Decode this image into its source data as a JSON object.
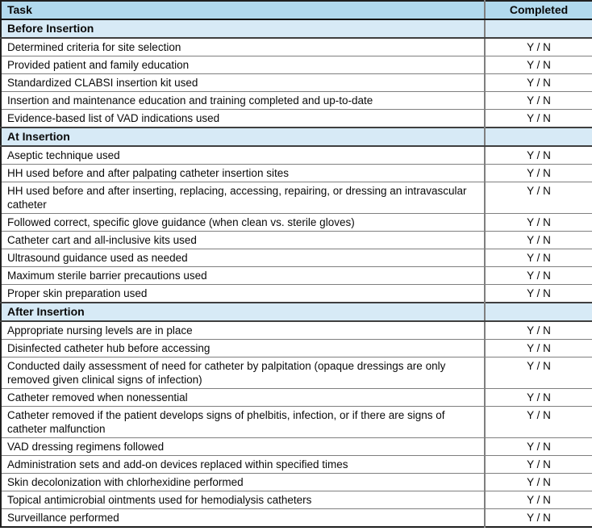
{
  "colors": {
    "header_bg": "#b1d9ed",
    "section_bg": "#d7eaf6",
    "outer_border": "#1f1f1f",
    "row_divider": "#7f7f7f",
    "text": "#0a0a0a"
  },
  "table": {
    "header": {
      "task": "Task",
      "completed": "Completed"
    },
    "sections": [
      {
        "title": "Before Insertion",
        "rows": [
          {
            "task": "Determined criteria for site selection",
            "completed": "Y / N"
          },
          {
            "task": "Provided patient and family education",
            "completed": "Y / N"
          },
          {
            "task": "Standardized CLABSI insertion kit used",
            "completed": "Y / N"
          },
          {
            "task": "Insertion and maintenance education and training completed and up-to-date",
            "completed": "Y / N"
          },
          {
            "task": "Evidence-based list of VAD indications used",
            "completed": "Y / N"
          }
        ]
      },
      {
        "title": "At Insertion",
        "rows": [
          {
            "task": "Aseptic technique used",
            "completed": "Y / N"
          },
          {
            "task": "HH used before and after palpating catheter insertion sites",
            "completed": "Y / N"
          },
          {
            "task": "HH used before and after inserting, replacing, accessing, repairing, or dressing an intravascular catheter",
            "completed": "Y / N"
          },
          {
            "task": "Followed correct, specific glove guidance (when clean vs. sterile gloves)",
            "completed": "Y / N"
          },
          {
            "task": "Catheter cart and all-inclusive kits used",
            "completed": "Y / N"
          },
          {
            "task": "Ultrasound guidance used as needed",
            "completed": "Y / N"
          },
          {
            "task": "Maximum sterile barrier precautions used",
            "completed": "Y / N"
          },
          {
            "task": "Proper skin preparation used",
            "completed": "Y / N"
          }
        ]
      },
      {
        "title": "After Insertion",
        "rows": [
          {
            "task": "Appropriate nursing levels are in place",
            "completed": "Y / N"
          },
          {
            "task": "Disinfected catheter hub before accessing",
            "completed": "Y / N"
          },
          {
            "task": "Conducted daily assessment of need for catheter by palpitation (opaque dressings are only removed given clinical signs of infection)",
            "completed": "Y / N"
          },
          {
            "task": "Catheter removed when nonessential",
            "completed": "Y / N"
          },
          {
            "task": "Catheter removed if the patient develops signs of phelbitis, infection, or if there are signs of catheter malfunction",
            "completed": "Y / N"
          },
          {
            "task": "VAD dressing regimens followed",
            "completed": "Y / N"
          },
          {
            "task": "Administration sets and add-on devices replaced within specified times",
            "completed": "Y / N"
          },
          {
            "task": "Skin decolonization with chlorhexidine performed",
            "completed": "Y / N"
          },
          {
            "task": "Topical antimicrobial ointments used for hemodialysis catheters",
            "completed": "Y / N"
          },
          {
            "task": "Surveillance performed",
            "completed": "Y / N"
          }
        ]
      }
    ]
  }
}
